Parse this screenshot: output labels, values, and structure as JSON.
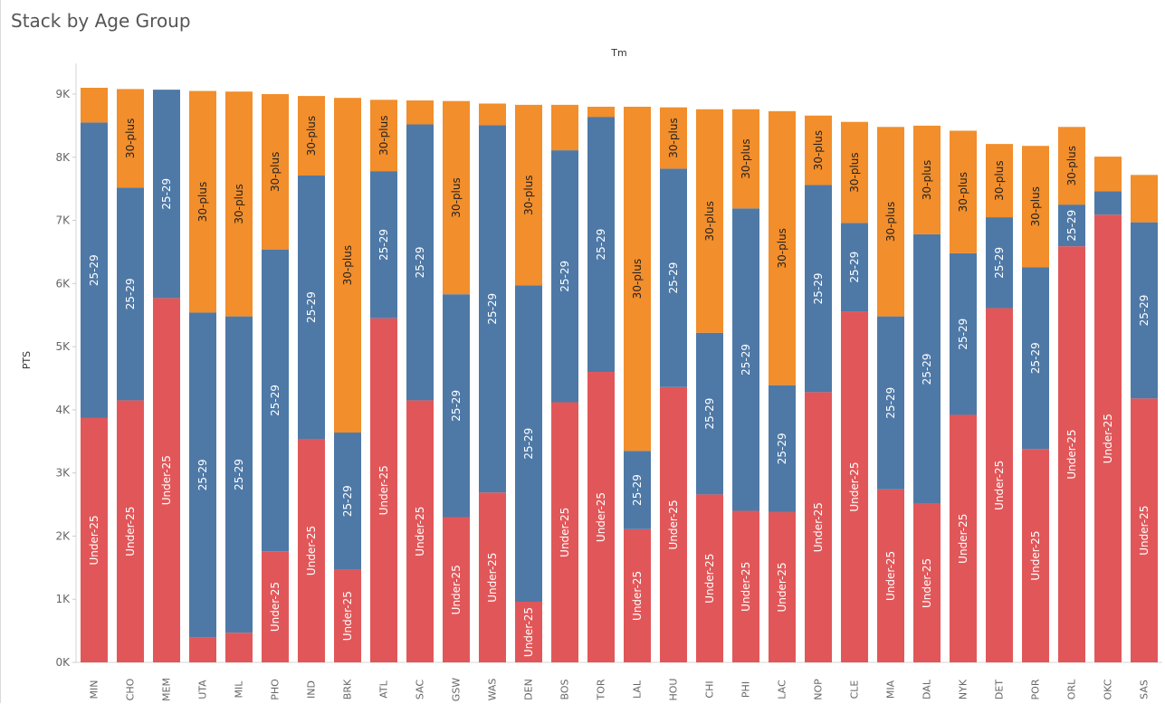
{
  "title": "Stack by Age Group",
  "chart_data": {
    "type": "bar",
    "stacked": true,
    "title": "Stack by Age Group",
    "column_header": "Tm",
    "ylabel": "PTS",
    "ylim": [
      0,
      9500
    ],
    "yticks": [
      {
        "value": 0,
        "label": "0K"
      },
      {
        "value": 1000,
        "label": "1K"
      },
      {
        "value": 2000,
        "label": "2K"
      },
      {
        "value": 3000,
        "label": "3K"
      },
      {
        "value": 4000,
        "label": "4K"
      },
      {
        "value": 5000,
        "label": "5K"
      },
      {
        "value": 6000,
        "label": "6K"
      },
      {
        "value": 7000,
        "label": "7K"
      },
      {
        "value": 8000,
        "label": "8K"
      },
      {
        "value": 9000,
        "label": "9K"
      }
    ],
    "categories": [
      "MIN",
      "CHO",
      "MEM",
      "UTA",
      "MIL",
      "PHO",
      "IND",
      "BRK",
      "ATL",
      "SAC",
      "GSW",
      "WAS",
      "DEN",
      "BOS",
      "TOR",
      "LAL",
      "HOU",
      "CHI",
      "PHI",
      "LAC",
      "NOP",
      "CLE",
      "MIA",
      "DAL",
      "NYK",
      "DET",
      "POR",
      "ORL",
      "OKC",
      "SAS"
    ],
    "series": [
      {
        "name": "Under-25",
        "color": "#e15759",
        "values": [
          3870,
          4150,
          5770,
          400,
          470,
          1760,
          3540,
          1470,
          5450,
          4150,
          2300,
          2690,
          960,
          4120,
          4600,
          2110,
          4360,
          2660,
          2400,
          2380,
          4280,
          5560,
          2740,
          2510,
          3920,
          5610,
          3380,
          6590,
          7090,
          4180
        ]
      },
      {
        "name": "25-29",
        "color": "#4e79a7",
        "values": [
          4680,
          3370,
          3300,
          5140,
          5010,
          4780,
          4170,
          2170,
          2330,
          4370,
          3530,
          5820,
          5010,
          3990,
          4040,
          1240,
          3460,
          2560,
          4790,
          2010,
          3280,
          1400,
          2740,
          4270,
          2560,
          1440,
          2880,
          660,
          370,
          2790
        ]
      },
      {
        "name": "30-plus",
        "color": "#f28e2b",
        "values": [
          550,
          1560,
          0,
          3510,
          3560,
          2460,
          1260,
          5300,
          1130,
          380,
          3060,
          340,
          2860,
          720,
          160,
          5450,
          970,
          3540,
          1570,
          4340,
          1100,
          1600,
          3000,
          1720,
          1940,
          1160,
          1920,
          1230,
          550,
          750
        ]
      }
    ]
  }
}
